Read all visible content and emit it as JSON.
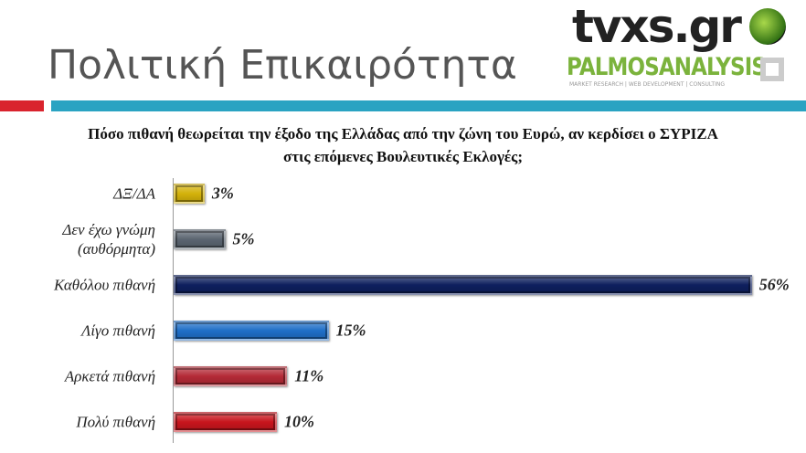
{
  "header": {
    "title": "Πολιτική Επικαιρότητα",
    "logo": "tvxs.gr",
    "brand": "PALMOSANALYSIS",
    "tagline": "MARKET RESEARCH | WEB DEVELOPMENT | CONSULTING"
  },
  "chart_data": {
    "type": "bar",
    "orientation": "horizontal",
    "title": "Πόσο πιθανή θεωρείται την έξοδο της Ελλάδας από την ζώνη του Ευρώ, αν κερδίσει ο ΣΥΡΙΖΑ στις επόμενες Βουλευτικές Εκλογές;",
    "categories": [
      "ΔΞ/ΔΑ",
      "Δεν έχω γνώμη (αυθόρμητα)",
      "Καθόλου πιθανή",
      "Λίγο πιθανή",
      "Αρκετά πιθανή",
      "Πολύ πιθανή"
    ],
    "values": [
      3,
      5,
      56,
      15,
      11,
      10
    ],
    "value_labels": [
      "3%",
      "5%",
      "56%",
      "15%",
      "11%",
      "10%"
    ],
    "colors": [
      "#d4b20a",
      "#5b6570",
      "#0e1f5e",
      "#1f6fc8",
      "#b42a36",
      "#c8151d"
    ]
  }
}
